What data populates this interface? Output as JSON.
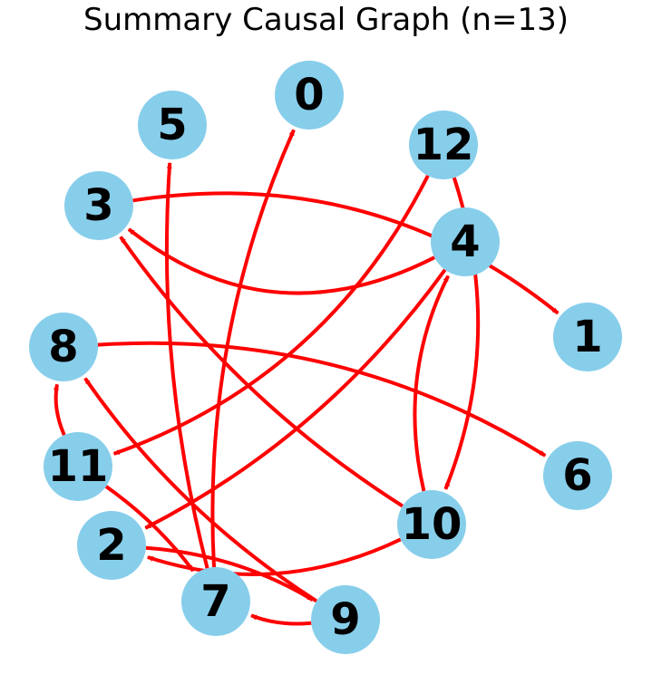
{
  "title": "Summary Causal Graph (n=13)",
  "colors": {
    "node_fill": "#87CEEB",
    "edge": "#FF0000",
    "label": "#000000",
    "background": "#FFFFFF"
  },
  "nodes": [
    "0",
    "1",
    "2",
    "3",
    "4",
    "5",
    "6",
    "7",
    "8",
    "9",
    "10",
    "11",
    "12"
  ],
  "edges": [
    {
      "from": "4",
      "to": "3"
    },
    {
      "from": "3",
      "to": "1"
    },
    {
      "from": "12",
      "to": "11"
    },
    {
      "from": "12",
      "to": "10"
    },
    {
      "from": "4",
      "to": "2"
    },
    {
      "from": "10",
      "to": "4"
    },
    {
      "from": "10",
      "to": "3"
    },
    {
      "from": "10",
      "to": "2"
    },
    {
      "from": "8",
      "to": "6"
    },
    {
      "from": "9",
      "to": "8"
    },
    {
      "from": "11",
      "to": "8"
    },
    {
      "from": "11",
      "to": "7"
    },
    {
      "from": "2",
      "to": "9"
    },
    {
      "from": "9",
      "to": "7"
    },
    {
      "from": "7",
      "to": "0"
    },
    {
      "from": "7",
      "to": "5"
    }
  ]
}
